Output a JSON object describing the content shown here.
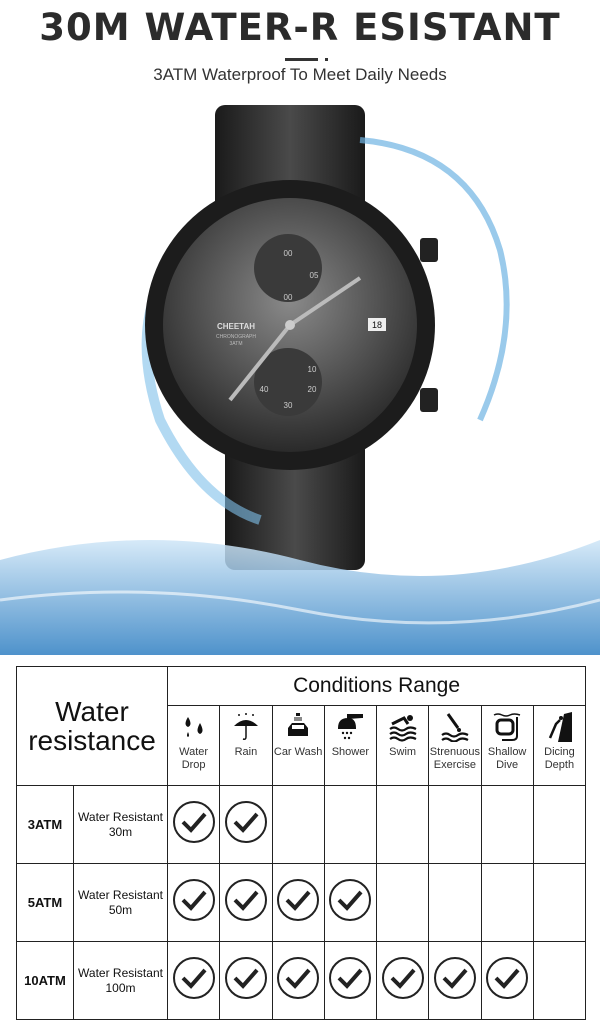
{
  "header": {
    "title": "30M WATER-R ESISTANT",
    "subtitle": "3ATM Waterproof To Meet Daily Needs"
  },
  "watch": {
    "brand": "CHEETAH",
    "line": "CHRONOGRAPH",
    "rating": "3ATM",
    "subdial_top": [
      "00",
      "05",
      "00"
    ],
    "subdial_bottom": [
      "30",
      "20",
      "10",
      "40"
    ],
    "date": "18"
  },
  "table": {
    "row_header": "Water resistance",
    "group_header": "Conditions Range",
    "conditions": [
      {
        "label": "Water Drop",
        "icon": "water-drop-icon"
      },
      {
        "label": "Rain",
        "icon": "umbrella-rain-icon"
      },
      {
        "label": "Car Wash",
        "icon": "car-wash-icon"
      },
      {
        "label": "Shower",
        "icon": "shower-icon"
      },
      {
        "label": "Swim",
        "icon": "swim-icon"
      },
      {
        "label": "Strenuous Exercise",
        "icon": "dive-exercise-icon"
      },
      {
        "label": "Shallow Dive",
        "icon": "snorkel-mask-icon"
      },
      {
        "label": "Dicing Depth",
        "icon": "scuba-diver-icon"
      }
    ],
    "rows": [
      {
        "atm": "3ATM",
        "desc": "Water Resistant 30m",
        "checks": 2
      },
      {
        "atm": "5ATM",
        "desc": "Water Resistant 50m",
        "checks": 4
      },
      {
        "atm": "10ATM",
        "desc": "Water Resistant 100m",
        "checks": 7
      }
    ]
  }
}
